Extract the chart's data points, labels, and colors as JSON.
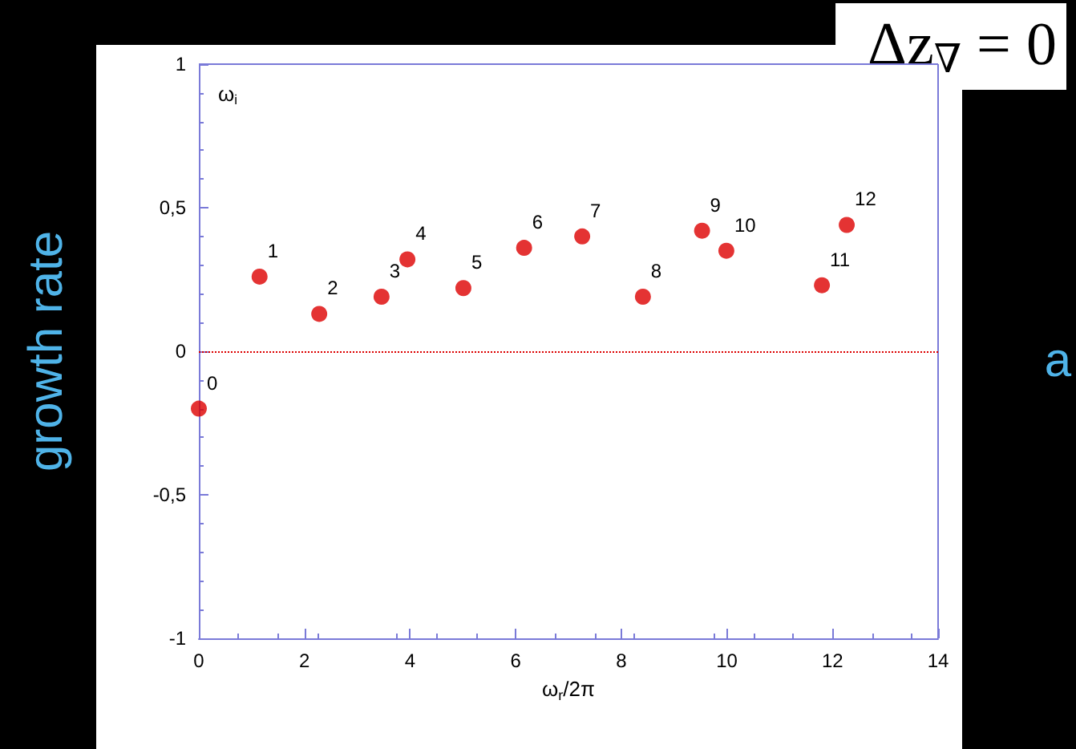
{
  "chart_data": {
    "type": "scatter",
    "title": "Δz$_{∇}$ = 0",
    "xlabel": "ω$_{r}$/2π",
    "ylabel": "ω$_{i}$",
    "x": [
      0,
      1.15,
      2.28,
      3.46,
      3.95,
      5.01,
      6.16,
      7.26,
      8.41,
      9.53,
      9.99,
      11.8,
      12.27
    ],
    "series": [
      {
        "color": "#dd0000",
        "values": [
          -0.2,
          0.26,
          0.13,
          0.19,
          0.32,
          0.22,
          0.36,
          0.4,
          0.19,
          0.42,
          0.35,
          0.23,
          0.44
        ]
      }
    ],
    "xlim": [
      0,
      14
    ],
    "xticks": [
      0,
      2,
      4,
      6,
      8,
      10,
      12,
      14
    ],
    "ylim": [
      -1,
      1
    ],
    "yticks": [
      -1,
      {
        "value": -0.5,
        "label": "-0,5"
      },
      0,
      {
        "value": 0.5,
        "label": "0,5"
      },
      1
    ],
    "ref_lines": [
      {
        "axis": "y",
        "value": 0,
        "color": "#dd0000",
        "line_style": "dotted"
      }
    ],
    "marker": "circle",
    "annotations": [
      "growth rate",
      "a",
      {
        "text": "0",
        "x": 0,
        "y": -0.2
      },
      {
        "text": "1",
        "x": 1.15,
        "y": 0.26
      },
      {
        "text": "2",
        "x": 2.28,
        "y": 0.13
      },
      {
        "text": "3",
        "x": 3.46,
        "y": 0.19
      },
      {
        "text": "4",
        "x": 3.95,
        "y": 0.32
      },
      {
        "text": "5",
        "x": 5.01,
        "y": 0.22
      },
      {
        "text": "6",
        "x": 6.16,
        "y": 0.36
      },
      {
        "text": "7",
        "x": 7.26,
        "y": 0.4
      },
      {
        "text": "8",
        "x": 8.41,
        "y": 0.19
      },
      {
        "text": "9",
        "x": 9.53,
        "y": 0.42
      },
      {
        "text": "10",
        "x": 9.99,
        "y": 0.35
      },
      {
        "text": "11",
        "x": 11.8,
        "y": 0.23
      },
      {
        "text": "12",
        "x": 12.27,
        "y": 0.44
      }
    ]
  }
}
